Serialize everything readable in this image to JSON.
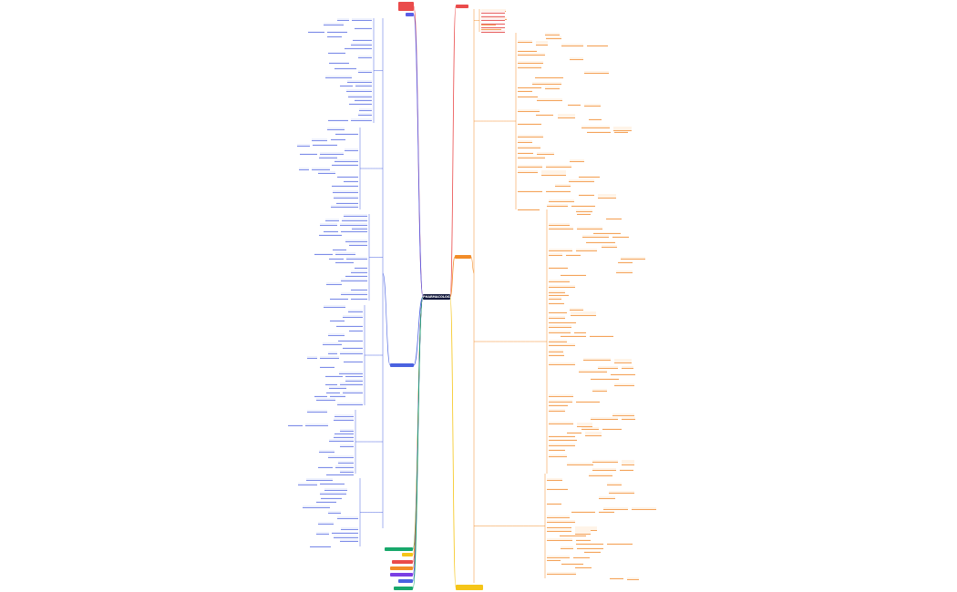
{
  "root": {
    "label": "PHARMACOLOGIA"
  },
  "branches": [
    {
      "id": "b1",
      "label": "",
      "color": "#ea4b4b"
    },
    {
      "id": "b2",
      "label": "",
      "color": "#ea4b4b"
    },
    {
      "id": "b3",
      "label": "",
      "color": "#5a5ee8"
    },
    {
      "id": "b4",
      "label": "",
      "color": "#f28c28"
    },
    {
      "id": "b5",
      "label": "",
      "color": "#4a62e0"
    },
    {
      "id": "b6",
      "label": "",
      "color": "#f5c518"
    },
    {
      "id": "b7",
      "label": "",
      "color": "#18a86b"
    },
    {
      "id": "b8",
      "label": "",
      "color": "#f5c518"
    },
    {
      "id": "b9",
      "label": "",
      "color": "#ea4b4b"
    },
    {
      "id": "b10",
      "label": "",
      "color": "#f28c28"
    },
    {
      "id": "b11",
      "label": "",
      "color": "#7b3fe4"
    },
    {
      "id": "b12",
      "label": "",
      "color": "#4a62e0"
    },
    {
      "id": "b13",
      "label": "",
      "color": "#18a86b"
    }
  ],
  "colors": {
    "root_bg": "#10163a",
    "blue_branch": "#4a62e0",
    "orange_branch": "#f28c28",
    "red_branch": "#ea4b4b",
    "yellow_branch": "#f5c518",
    "green_branch": "#18a86b",
    "purple_branch": "#7b3fe4"
  }
}
